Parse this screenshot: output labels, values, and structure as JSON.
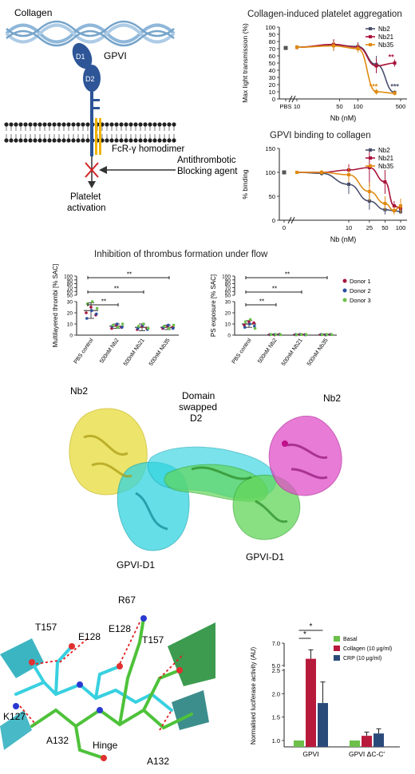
{
  "schematic": {
    "collagen_label": "Collagen",
    "gpvi_label": "GPVI",
    "d1_label": "D1",
    "d2_label": "D2",
    "fcr_label": "FcR-γ homodimer",
    "blocking_label_1": "Antithrombotic",
    "blocking_label_2": "Blocking agent",
    "activation_label_1": "Platelet",
    "activation_label_2": "activation",
    "colors": {
      "collagen": "#8ab4d8",
      "gpvi": "#2d5597",
      "fcr": "#f0b400",
      "block": "#d22222"
    }
  },
  "structure": {
    "nb2_left": "Nb2",
    "nb2_right": "Nb2",
    "domain_swapped_1": "Domain",
    "domain_swapped_2": "swapped",
    "domain_swapped_3": "D2",
    "gpvi_d1_left": "GPVI-D1",
    "gpvi_d1_right": "GPVI-D1",
    "colors": {
      "nb2_left": "#e8dc3a",
      "d1_left": "#32d4e0",
      "swap": "#62d65a",
      "nb2_right": "#e050c8"
    }
  },
  "hinge_detail": {
    "labels": [
      "R67",
      "T157",
      "E128",
      "E128",
      "T157",
      "K127",
      "A132",
      "Hinge",
      "A132"
    ]
  },
  "chart_data": [
    {
      "id": "aggregation",
      "type": "line",
      "title": "Collagen-induced platelet aggregation",
      "xlabel": "Nb (nM)",
      "ylabel": "Max light transmission (%)",
      "x_ticks": [
        "PBS",
        "10",
        "50",
        "100",
        "500"
      ],
      "y_ticks": [
        0,
        10,
        20,
        30,
        40,
        50,
        60,
        70,
        80,
        90,
        100
      ],
      "ylim": [
        0,
        100
      ],
      "legend": [
        "Nb2",
        "Nb21",
        "Nb35"
      ],
      "legend_position": "top-right",
      "pbs_value": 71,
      "x": [
        10,
        40,
        100,
        200,
        400
      ],
      "series": [
        {
          "name": "Nb2",
          "color": "#4a4f6e",
          "values": [
            72,
            75,
            73,
            48,
            9
          ],
          "errors": [
            3,
            8,
            6,
            12,
            3
          ]
        },
        {
          "name": "Nb21",
          "color": "#a8143a",
          "values": [
            72,
            76,
            72,
            46,
            50
          ],
          "errors": [
            3,
            7,
            6,
            10,
            5
          ]
        },
        {
          "name": "Nb35",
          "color": "#e08a10",
          "values": [
            72,
            74,
            70,
            10,
            8
          ],
          "errors": [
            3,
            6,
            5,
            4,
            3
          ]
        }
      ],
      "annotations": [
        {
          "text": "**",
          "color": "#a8143a",
          "x": 350,
          "y": 55
        },
        {
          "text": "***",
          "color": "#4a4f6e",
          "x": 400,
          "y": 14
        },
        {
          "text": "***",
          "color": "#e08a10",
          "x": 180,
          "y": 14
        }
      ]
    },
    {
      "id": "binding",
      "type": "line",
      "title": "GPVI binding to collagen",
      "xlabel": "Nb (nM)",
      "ylabel": "% binding",
      "x_ticks": [
        "0",
        "10",
        "25",
        "50",
        "100"
      ],
      "y_ticks": [
        0,
        50,
        100,
        150
      ],
      "ylim": [
        0,
        150
      ],
      "legend": [
        "Nb2",
        "Nb21",
        "Nb35"
      ],
      "legend_position": "top-right",
      "zero_value": 100,
      "x": [
        1,
        3,
        10,
        25,
        50,
        75,
        100
      ],
      "series": [
        {
          "name": "Nb2",
          "color": "#4a4f6e",
          "values": [
            100,
            98,
            75,
            40,
            22,
            20,
            18
          ],
          "errors": [
            2,
            5,
            20,
            18,
            10,
            5,
            5
          ]
        },
        {
          "name": "Nb21",
          "color": "#a8143a",
          "values": [
            100,
            100,
            105,
            110,
            80,
            30,
            25
          ],
          "errors": [
            2,
            5,
            12,
            40,
            25,
            10,
            8
          ]
        },
        {
          "name": "Nb35",
          "color": "#e08a10",
          "values": [
            100,
            100,
            95,
            60,
            35,
            20,
            30
          ],
          "errors": [
            2,
            5,
            15,
            20,
            15,
            8,
            15
          ]
        }
      ]
    },
    {
      "id": "thrombi",
      "type": "scatter",
      "title": "Inhibition of thrombus formation under flow",
      "ylabel": "Multilayered thrombi [% SAC]",
      "categories": [
        "PBS control",
        "500nM Nb2",
        "500nM Nb21",
        "500nM Nb35"
      ],
      "y_ticks": [
        0,
        10,
        20,
        30,
        40,
        50,
        60,
        70,
        80,
        90,
        100
      ],
      "means": [
        22,
        8,
        7,
        7
      ],
      "errors": [
        7,
        2,
        3,
        2
      ],
      "donors": [
        {
          "name": "Donor 1",
          "color": "#a8143a",
          "values": [
            [
              20,
              25,
              18
            ],
            [
              6,
              9,
              7
            ],
            [
              5,
              8,
              6
            ],
            [
              6,
              8,
              7
            ]
          ]
        },
        {
          "name": "Donor 2",
          "color": "#2a4fa0",
          "values": [
            [
              15,
              22,
              19
            ],
            [
              8,
              10,
              7
            ],
            [
              6,
              9,
              5
            ],
            [
              7,
              9,
              6
            ]
          ]
        },
        {
          "name": "Donor 3",
          "color": "#6cc04a",
          "values": [
            [
              28,
              30,
              24
            ],
            [
              9,
              7,
              10
            ],
            [
              8,
              10,
              6
            ],
            [
              8,
              6,
              9
            ]
          ]
        }
      ],
      "significance": [
        {
          "to": 1,
          "text": "**"
        },
        {
          "to": 2,
          "text": "**"
        },
        {
          "to": 3,
          "text": "**"
        }
      ]
    },
    {
      "id": "ps_exposure",
      "type": "scatter",
      "ylabel": "PS exposure [% SAC]",
      "categories": [
        "PBS control",
        "500nM Nb2",
        "500nM Nb21",
        "500nM Nb35"
      ],
      "y_ticks": [
        0,
        10,
        20,
        30,
        40,
        50,
        60,
        70,
        80,
        90,
        100
      ],
      "legend": [
        "Donor 1",
        "Donor 2",
        "Donor 3"
      ],
      "legend_position": "right",
      "means": [
        10,
        0.5,
        0.5,
        0.5
      ],
      "errors": [
        3,
        0.5,
        0.5,
        0.5
      ],
      "donors": [
        {
          "name": "Donor 1",
          "color": "#a8143a",
          "values": [
            [
              9,
              12,
              11
            ],
            [
              0.5,
              0.3,
              0.7
            ],
            [
              0.4,
              0.6,
              0.5
            ],
            [
              0.5,
              0.3,
              0.6
            ]
          ]
        },
        {
          "name": "Donor 2",
          "color": "#2a4fa0",
          "values": [
            [
              7,
              10,
              8
            ],
            [
              0.4,
              0.6,
              0.5
            ],
            [
              0.5,
              0.7,
              0.3
            ],
            [
              0.6,
              0.4,
              0.5
            ]
          ]
        },
        {
          "name": "Donor 3",
          "color": "#6cc04a",
          "values": [
            [
              12,
              14,
              6
            ],
            [
              0.6,
              0.5,
              0.4
            ],
            [
              0.3,
              0.5,
              0.6
            ],
            [
              0.4,
              0.6,
              0.5
            ]
          ]
        }
      ],
      "significance": [
        {
          "to": 1,
          "text": "**"
        },
        {
          "to": 2,
          "text": "**"
        },
        {
          "to": 3,
          "text": "**"
        }
      ]
    },
    {
      "id": "luciferase",
      "type": "bar",
      "ylabel": "Normalised luciferase activity (AU)",
      "categories": [
        "GPVI",
        "GPVI ΔC-C′"
      ],
      "y_ticks": [
        1.0,
        1.5,
        2.0,
        2.5,
        5.0,
        7.0
      ],
      "legend": [
        "Basal",
        "Collagen (10 μg/ml)",
        "CRP (10 μg/ml)"
      ],
      "legend_position": "top-right",
      "series": [
        {
          "name": "Basal",
          "color": "#6cc04a",
          "values": [
            1.0,
            1.0
          ],
          "errors": [
            0,
            0
          ]
        },
        {
          "name": "Collagen (10 μg/ml)",
          "color": "#b81a3c",
          "values": [
            5.6,
            1.1
          ],
          "errors": [
            0.8,
            0.08
          ]
        },
        {
          "name": "CRP (10 μg/ml)",
          "color": "#2a4a7a",
          "values": [
            1.8,
            1.15
          ],
          "errors": [
            0.45,
            0.1
          ]
        }
      ],
      "significance": [
        {
          "from_series": 0,
          "to_series": 1,
          "text": "*"
        },
        {
          "from_series": 0,
          "to_series": 2,
          "text": "*"
        }
      ]
    }
  ]
}
